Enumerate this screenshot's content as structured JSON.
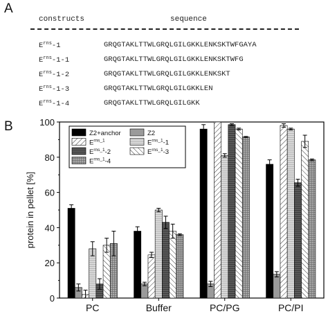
{
  "panelA": {
    "label": "A",
    "header_constructs": "constructs",
    "header_sequence": "sequence",
    "rows": [
      {
        "name_base": "E",
        "name_sup": "rns",
        "name_suffix": "-1",
        "seq": "GRQGTAKLTTWLGRQLGILGKKLENKSKTWFGAYA"
      },
      {
        "name_base": "E",
        "name_sup": "rns",
        "name_suffix": "-1-1",
        "seq": "GRQGTAKLTTWLGRQLGILGKKLENKSKTWFG"
      },
      {
        "name_base": "E",
        "name_sup": "rns",
        "name_suffix": "-1-2",
        "seq": "GRQGTAKLTTWLGRQLGILGKKLENKSKT"
      },
      {
        "name_base": "E",
        "name_sup": "rns",
        "name_suffix": "-1-3",
        "seq": "GRQGTAKLTTWLGRQLGILGKKLEN"
      },
      {
        "name_base": "E",
        "name_sup": "rns",
        "name_suffix": "-1-4",
        "seq": "GRQGTAKLTTWLGRQLGILGKK"
      }
    ]
  },
  "panelB": {
    "label": "B"
  },
  "chart_data": {
    "type": "bar",
    "ylabel": "protein in pellet [%]",
    "xlabel": "",
    "ylim": [
      0,
      100
    ],
    "yticks": [
      0,
      20,
      40,
      60,
      80,
      100
    ],
    "categories": [
      "PC",
      "Buffer",
      "PC/PG",
      "PC/PI"
    ],
    "legend_position": "top-left",
    "series": [
      {
        "name": "Z2+anchor",
        "pattern": "solid-black",
        "values": [
          51,
          38,
          96,
          76
        ],
        "errors": [
          2,
          2.5,
          2.5,
          2.5
        ]
      },
      {
        "name": "Z2",
        "pattern": "solid-gray",
        "values": [
          6,
          8,
          8,
          13.5
        ],
        "errors": [
          2,
          1,
          1.5,
          1.5
        ]
      },
      {
        "name": "E^rns_1",
        "pattern": "hatch",
        "values": [
          2,
          24.5,
          100,
          98
        ],
        "errors": [
          2.5,
          1.5,
          0,
          1
        ]
      },
      {
        "name": "E^rns_1-1",
        "pattern": "light-lines",
        "values": [
          28,
          50,
          81,
          96
        ],
        "errors": [
          4,
          1,
          1,
          0.5
        ]
      },
      {
        "name": "E^rns_1-2",
        "pattern": "dark-lines",
        "values": [
          8,
          43,
          98.5,
          65.5
        ],
        "errors": [
          3,
          3.5,
          0.5,
          2
        ]
      },
      {
        "name": "E^rns_1-3",
        "pattern": "backslash-hatch",
        "values": [
          30,
          38,
          96,
          89
        ],
        "errors": [
          4,
          4,
          0.5,
          3.5
        ]
      },
      {
        "name": "E^rns_1-4",
        "pattern": "grid",
        "values": [
          31,
          36,
          91.5,
          78.5
        ],
        "errors": [
          7,
          0.5,
          0.3,
          0.5
        ]
      }
    ],
    "legend_rows": [
      [
        "Z2+anchor",
        "Z2"
      ],
      [
        "E^rns_1",
        "E^rns_1-1"
      ],
      [
        "E^rns_1-2",
        "E^rns_1-3"
      ],
      [
        "E^rns_1-4",
        ""
      ]
    ]
  }
}
